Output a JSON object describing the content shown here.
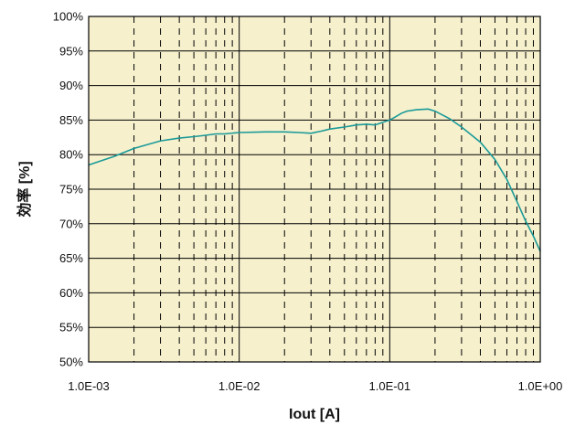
{
  "chart_data": {
    "type": "line",
    "xlabel": "Iout [A]",
    "ylabel": "効率 [%]",
    "x_scale": "log",
    "xlim": [
      0.001,
      1.0
    ],
    "ylim": [
      50,
      100
    ],
    "x_ticks": [
      {
        "value": 0.001,
        "label": "1.0E-03"
      },
      {
        "value": 0.01,
        "label": "1.0E-02"
      },
      {
        "value": 0.1,
        "label": "1.0E-01"
      },
      {
        "value": 1.0,
        "label": "1.0E+00"
      }
    ],
    "y_ticks": [
      {
        "value": 50,
        "label": "50%"
      },
      {
        "value": 55,
        "label": "55%"
      },
      {
        "value": 60,
        "label": "60%"
      },
      {
        "value": 65,
        "label": "65%"
      },
      {
        "value": 70,
        "label": "70%"
      },
      {
        "value": 75,
        "label": "75%"
      },
      {
        "value": 80,
        "label": "80%"
      },
      {
        "value": 85,
        "label": "85%"
      },
      {
        "value": 90,
        "label": "90%"
      },
      {
        "value": 95,
        "label": "95%"
      },
      {
        "value": 100,
        "label": "100%"
      }
    ],
    "grid": true,
    "colors": {
      "plot_background": "#f6f0cd",
      "series_line": "#1a9a98",
      "grid_major": "#000000",
      "grid_minor": "#000000"
    },
    "series": [
      {
        "x": [
          0.001,
          0.0015,
          0.002,
          0.003,
          0.004,
          0.005,
          0.006,
          0.007,
          0.008,
          0.01,
          0.015,
          0.02,
          0.025,
          0.03,
          0.035,
          0.04,
          0.05,
          0.06,
          0.07,
          0.08,
          0.09,
          0.1,
          0.11,
          0.12,
          0.13,
          0.15,
          0.18,
          0.2,
          0.25,
          0.3,
          0.4,
          0.5,
          0.6,
          0.7,
          0.8,
          0.9,
          1.0
        ],
        "y": [
          78.5,
          79.8,
          80.9,
          82.0,
          82.4,
          82.6,
          82.8,
          83.0,
          83.0,
          83.2,
          83.3,
          83.3,
          83.2,
          83.1,
          83.4,
          83.7,
          84.0,
          84.3,
          84.4,
          84.3,
          84.7,
          85.0,
          85.5,
          86.0,
          86.3,
          86.5,
          86.6,
          86.3,
          85.2,
          84.0,
          81.8,
          79.3,
          76.4,
          73.2,
          70.4,
          68.2,
          66.0
        ]
      }
    ]
  }
}
